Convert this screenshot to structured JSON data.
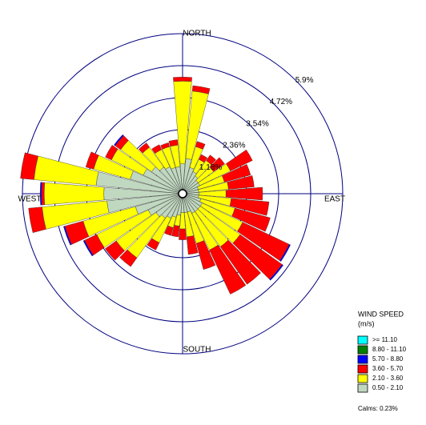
{
  "chart_data": {
    "type": "windrose",
    "direction_labels": [
      "NORTH",
      "EAST",
      "SOUTH",
      "WEST"
    ],
    "categories": [
      null,
      null,
      null,
      null,
      null,
      null,
      null,
      null,
      null,
      null,
      null,
      null,
      null,
      null,
      null,
      null,
      null,
      null,
      null,
      null,
      null,
      null,
      null,
      null,
      null,
      null,
      null,
      null,
      null,
      null,
      null,
      null,
      null,
      null,
      null,
      null
    ],
    "rlim": [
      0,
      5.9
    ],
    "rticks": [
      {
        "value": 1.18,
        "label": "1.18%"
      },
      {
        "value": 2.36,
        "label": "2.36%"
      },
      {
        "value": 3.54,
        "label": "3.54%"
      },
      {
        "value": 4.72,
        "label": "4.72%"
      },
      {
        "value": 5.9,
        "label": "5.9%"
      }
    ],
    "legend_title": "WIND SPEED",
    "legend_subtitle": "(m/s)",
    "calms": {
      "value": 0.23,
      "label": "Calms: 0.23%"
    },
    "series": [
      {
        "name": "0.50 - 2.10",
        "color": "#c0d8c0",
        "values": [
          1.1,
          1.3,
          1.0,
          0.9,
          0.8,
          0.7,
          0.7,
          0.6,
          0.6,
          0.6,
          0.6,
          0.7,
          0.8,
          0.8,
          0.8,
          0.8,
          0.7,
          0.7,
          0.7,
          0.8,
          0.9,
          1.0,
          1.1,
          1.2,
          1.4,
          1.8,
          2.8,
          2.9,
          3.2,
          2.0,
          1.6,
          1.4,
          1.2,
          1.1,
          1.0,
          1.0
        ]
      },
      {
        "name": "2.10 - 3.60",
        "color": "#ffff00",
        "values": [
          3.05,
          2.5,
          0.8,
          0.5,
          0.7,
          0.7,
          1.25,
          1.0,
          1.1,
          1.0,
          1.2,
          1.3,
          1.65,
          1.8,
          1.6,
          1.5,
          1.2,
          0.9,
          0.6,
          0.4,
          0.4,
          1.0,
          1.8,
          1.8,
          2.1,
          2.0,
          2.4,
          2.2,
          2.3,
          1.4,
          1.3,
          1.4,
          0.9,
          0.7,
          0.8,
          0.8
        ]
      },
      {
        "name": "3.60 - 5.70",
        "color": "#ff0000",
        "values": [
          0.15,
          0.2,
          0.2,
          0.2,
          0.25,
          0.5,
          0.9,
          1.0,
          0.95,
          1.35,
          1.4,
          1.35,
          1.9,
          1.9,
          1.7,
          1.8,
          1.0,
          0.65,
          0.4,
          0.4,
          0.3,
          0.3,
          0.4,
          0.5,
          0.5,
          0.7,
          0.5,
          0.1,
          0.5,
          0.3,
          0.25,
          0.25,
          0.2,
          0.2,
          0.15,
          0.2
        ]
      },
      {
        "name": "5.70 - 8.80",
        "color": "#0000ff",
        "values": [
          0,
          0,
          0,
          0,
          0,
          0,
          0,
          0,
          0,
          0,
          0,
          0,
          0.05,
          0.05,
          0,
          0,
          0,
          0,
          0,
          0,
          0,
          0,
          0,
          0,
          0.05,
          0.05,
          0,
          0.05,
          0,
          0,
          0,
          0.05,
          0,
          0,
          0,
          0
        ]
      },
      {
        "name": "8.80 - 11.10",
        "color": "#008000",
        "values": [
          0,
          0,
          0,
          0,
          0,
          0,
          0,
          0,
          0,
          0,
          0,
          0,
          0,
          0,
          0,
          0,
          0,
          0,
          0,
          0,
          0,
          0,
          0,
          0,
          0,
          0,
          0,
          0,
          0,
          0,
          0,
          0,
          0,
          0,
          0,
          0
        ]
      },
      {
        "name": ">= 11.10",
        "color": "#00ffff",
        "values": [
          0,
          0,
          0,
          0,
          0,
          0,
          0,
          0,
          0,
          0,
          0,
          0,
          0,
          0,
          0,
          0,
          0,
          0,
          0,
          0,
          0,
          0,
          0,
          0,
          0,
          0,
          0,
          0,
          0,
          0,
          0,
          0,
          0,
          0,
          0,
          0
        ]
      }
    ]
  }
}
